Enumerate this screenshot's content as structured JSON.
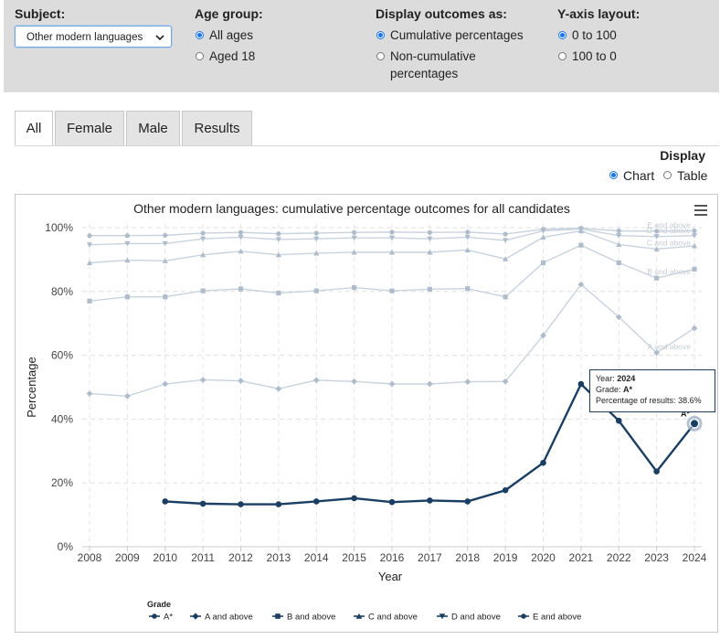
{
  "filters": {
    "subject": {
      "label": "Subject:",
      "value": "Other modern languages"
    },
    "age_group": {
      "label": "Age group:",
      "options": [
        "All ages",
        "Aged 18"
      ],
      "selected": "All ages"
    },
    "display_outcomes": {
      "label": "Display outcomes as:",
      "options": [
        "Cumulative percentages",
        "Non-cumulative",
        "percentages"
      ],
      "selected": "Cumulative percentages"
    },
    "y_axis": {
      "label": "Y-axis layout:",
      "options": [
        "0 to 100",
        "100 to 0"
      ],
      "selected": "0 to 100"
    }
  },
  "tabs": [
    "All",
    "Female",
    "Male",
    "Results"
  ],
  "active_tab": "All",
  "display": {
    "label": "Display",
    "options": [
      "Chart",
      "Table"
    ],
    "selected": "Chart"
  },
  "tooltip": {
    "year_label": "Year: ",
    "year": "2024",
    "grade_label": "Grade: ",
    "grade": "A*",
    "pct_label": "Percentage of results: ",
    "pct": "38.6%"
  },
  "colors": {
    "highlight": "#1b3f63",
    "faded": "#c9d3de",
    "marker_faded": "#aebccb"
  },
  "chart_data": {
    "type": "line",
    "title": "Other modern languages: cumulative percentage outcomes for all candidates",
    "xlabel": "Year",
    "ylabel": "Percentage",
    "x": [
      2008,
      2009,
      2010,
      2011,
      2012,
      2013,
      2014,
      2015,
      2016,
      2017,
      2018,
      2019,
      2020,
      2021,
      2022,
      2023,
      2024
    ],
    "ylim": [
      0,
      100
    ],
    "yticks": [
      "0%",
      "20%",
      "40%",
      "60%",
      "80%",
      "100%"
    ],
    "grid": true,
    "legend_title": "Grade",
    "legend_position": "bottom",
    "series": [
      {
        "name": "A*",
        "values": [
          null,
          null,
          14.2,
          13.5,
          13.3,
          13.3,
          14.2,
          15.2,
          14.0,
          14.5,
          14.2,
          17.7,
          26.3,
          51.0,
          39.5,
          23.6,
          38.6
        ],
        "highlight": true,
        "point_label": "A*"
      },
      {
        "name": "A and above",
        "values": [
          48.0,
          47.2,
          51.0,
          52.3,
          52.0,
          49.5,
          52.2,
          51.8,
          51.0,
          51.0,
          51.7,
          51.8,
          66.2,
          82.2,
          72.0,
          60.8,
          68.5
        ],
        "highlight": false,
        "point_label": "A and above"
      },
      {
        "name": "B and above",
        "values": [
          77.0,
          78.3,
          78.3,
          80.2,
          80.8,
          79.5,
          80.2,
          81.2,
          80.2,
          80.7,
          80.9,
          78.3,
          89.0,
          94.5,
          89.0,
          84.2,
          87.0
        ],
        "highlight": false,
        "point_label": "B and above"
      },
      {
        "name": "C and above",
        "values": [
          89.0,
          89.8,
          89.6,
          91.5,
          92.6,
          91.5,
          92.0,
          92.3,
          92.3,
          92.3,
          93.0,
          90.2,
          97.0,
          99.0,
          94.7,
          93.3,
          94.3
        ],
        "highlight": false,
        "point_label": "C and above"
      },
      {
        "name": "D and above",
        "values": [
          94.6,
          95.0,
          95.0,
          96.5,
          97.0,
          96.3,
          96.5,
          96.8,
          96.8,
          96.5,
          97.0,
          96.0,
          99.0,
          99.6,
          97.5,
          97.2,
          97.5
        ],
        "highlight": false,
        "point_label": "D and above"
      },
      {
        "name": "E and above",
        "values": [
          97.5,
          97.5,
          97.6,
          98.3,
          98.5,
          98.1,
          98.3,
          98.5,
          98.6,
          98.5,
          98.6,
          98.0,
          99.5,
          99.8,
          99.0,
          98.9,
          99.0
        ],
        "highlight": false,
        "point_label": "E and above"
      }
    ]
  }
}
